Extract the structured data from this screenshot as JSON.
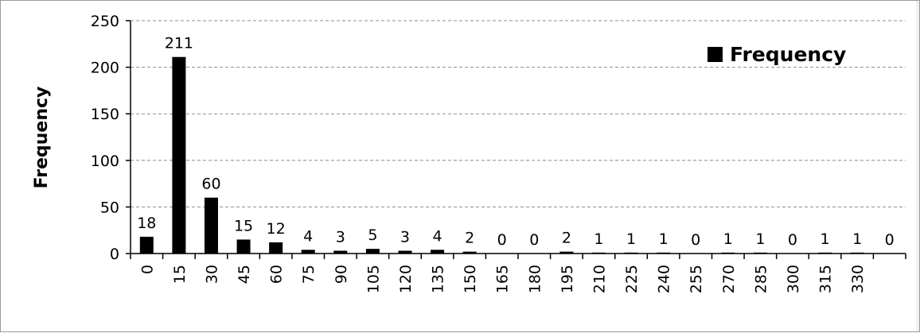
{
  "chart_data": {
    "type": "bar",
    "categories": [
      "0",
      "15",
      "30",
      "45",
      "60",
      "75",
      "90",
      "105",
      "120",
      "135",
      "150",
      "165",
      "180",
      "195",
      "210",
      "225",
      "240",
      "255",
      "270",
      "285",
      "300",
      "315",
      "330",
      ""
    ],
    "series": [
      {
        "name": "Frequency",
        "color": "#000000",
        "values": [
          18,
          211,
          60,
          15,
          12,
          4,
          3,
          5,
          3,
          4,
          2,
          0,
          0,
          2,
          1,
          1,
          1,
          0,
          1,
          1,
          0,
          1,
          1,
          0
        ]
      }
    ],
    "data_labels": [
      "18",
      "211",
      "60",
      "15",
      "12",
      "4",
      "3",
      "5",
      "3",
      "4",
      "2",
      "0",
      "0",
      "2",
      "1",
      "1",
      "1",
      "0",
      "1",
      "1",
      "0",
      "1",
      "1",
      "0"
    ],
    "ylabel": "Frequency",
    "xlabel": "",
    "ylim": [
      0,
      250
    ],
    "yticks": [
      0,
      50,
      100,
      150,
      200,
      250
    ],
    "grid": "horizontal-dashed",
    "legend": {
      "position": "top-right",
      "entries": [
        "Frequency"
      ]
    }
  }
}
